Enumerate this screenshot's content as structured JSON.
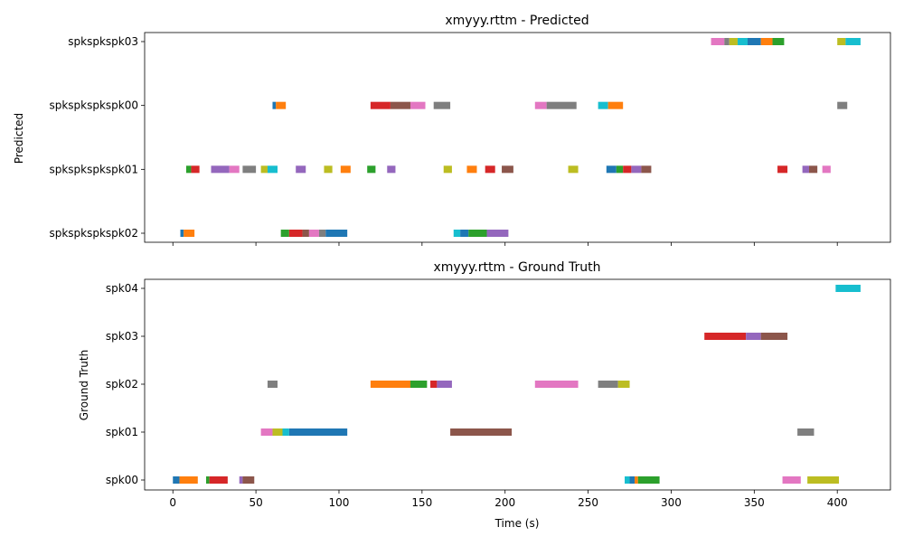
{
  "chart_data": [
    {
      "type": "timeline",
      "title": "xmyyy.rttm - Predicted",
      "ylabel": "Predicted",
      "xlabel": "",
      "xlim": [
        -17,
        432
      ],
      "xticks": [
        0,
        50,
        100,
        150,
        200,
        250,
        300,
        350,
        400
      ],
      "show_xtick_labels": false,
      "categories": [
        "spkspkspkspk02",
        "spkspkspkspk01",
        "spkspkspkspk00",
        "spkspkspk03"
      ],
      "segments": [
        {
          "row": 0,
          "start": 4.5,
          "end": 6.5,
          "color": "#1f77b4"
        },
        {
          "row": 0,
          "start": 6.5,
          "end": 13,
          "color": "#ff7f0e"
        },
        {
          "row": 0,
          "start": 65,
          "end": 70,
          "color": "#2ca02c"
        },
        {
          "row": 0,
          "start": 70,
          "end": 78,
          "color": "#d62728"
        },
        {
          "row": 0,
          "start": 78,
          "end": 82,
          "color": "#8c564b"
        },
        {
          "row": 0,
          "start": 82,
          "end": 88,
          "color": "#e377c2"
        },
        {
          "row": 0,
          "start": 88,
          "end": 92,
          "color": "#7f7f7f"
        },
        {
          "row": 0,
          "start": 92,
          "end": 105,
          "color": "#1f77b4"
        },
        {
          "row": 0,
          "start": 169,
          "end": 173,
          "color": "#17becf"
        },
        {
          "row": 0,
          "start": 173,
          "end": 178,
          "color": "#1f77b4"
        },
        {
          "row": 0,
          "start": 178,
          "end": 189,
          "color": "#2ca02c"
        },
        {
          "row": 0,
          "start": 189,
          "end": 202,
          "color": "#9467bd"
        },
        {
          "row": 1,
          "start": 8,
          "end": 11,
          "color": "#2ca02c"
        },
        {
          "row": 1,
          "start": 11,
          "end": 16,
          "color": "#d62728"
        },
        {
          "row": 1,
          "start": 23,
          "end": 34,
          "color": "#9467bd"
        },
        {
          "row": 1,
          "start": 34,
          "end": 40,
          "color": "#e377c2"
        },
        {
          "row": 1,
          "start": 42,
          "end": 50,
          "color": "#7f7f7f"
        },
        {
          "row": 1,
          "start": 53,
          "end": 57,
          "color": "#bcbd22"
        },
        {
          "row": 1,
          "start": 57,
          "end": 63,
          "color": "#17becf"
        },
        {
          "row": 1,
          "start": 74,
          "end": 80,
          "color": "#9467bd"
        },
        {
          "row": 1,
          "start": 91,
          "end": 96,
          "color": "#bcbd22"
        },
        {
          "row": 1,
          "start": 101,
          "end": 107,
          "color": "#ff7f0e"
        },
        {
          "row": 1,
          "start": 117,
          "end": 122,
          "color": "#2ca02c"
        },
        {
          "row": 1,
          "start": 129,
          "end": 134,
          "color": "#9467bd"
        },
        {
          "row": 1,
          "start": 163,
          "end": 168,
          "color": "#bcbd22"
        },
        {
          "row": 1,
          "start": 177,
          "end": 183,
          "color": "#ff7f0e"
        },
        {
          "row": 1,
          "start": 188,
          "end": 194,
          "color": "#d62728"
        },
        {
          "row": 1,
          "start": 198,
          "end": 205,
          "color": "#8c564b"
        },
        {
          "row": 1,
          "start": 238,
          "end": 244,
          "color": "#bcbd22"
        },
        {
          "row": 1,
          "start": 261,
          "end": 267,
          "color": "#1f77b4"
        },
        {
          "row": 1,
          "start": 267,
          "end": 271,
          "color": "#2ca02c"
        },
        {
          "row": 1,
          "start": 271,
          "end": 276,
          "color": "#d62728"
        },
        {
          "row": 1,
          "start": 276,
          "end": 282,
          "color": "#9467bd"
        },
        {
          "row": 1,
          "start": 282,
          "end": 288,
          "color": "#8c564b"
        },
        {
          "row": 1,
          "start": 364,
          "end": 370,
          "color": "#d62728"
        },
        {
          "row": 1,
          "start": 379,
          "end": 383,
          "color": "#9467bd"
        },
        {
          "row": 1,
          "start": 383,
          "end": 388,
          "color": "#8c564b"
        },
        {
          "row": 1,
          "start": 391,
          "end": 396,
          "color": "#e377c2"
        },
        {
          "row": 2,
          "start": 60,
          "end": 62,
          "color": "#1f77b4"
        },
        {
          "row": 2,
          "start": 62,
          "end": 68,
          "color": "#ff7f0e"
        },
        {
          "row": 2,
          "start": 119,
          "end": 131,
          "color": "#d62728"
        },
        {
          "row": 2,
          "start": 131,
          "end": 143,
          "color": "#8c564b"
        },
        {
          "row": 2,
          "start": 143,
          "end": 152,
          "color": "#e377c2"
        },
        {
          "row": 2,
          "start": 157,
          "end": 167,
          "color": "#7f7f7f"
        },
        {
          "row": 2,
          "start": 218,
          "end": 225,
          "color": "#e377c2"
        },
        {
          "row": 2,
          "start": 225,
          "end": 243,
          "color": "#7f7f7f"
        },
        {
          "row": 2,
          "start": 256,
          "end": 262,
          "color": "#17becf"
        },
        {
          "row": 2,
          "start": 262,
          "end": 271,
          "color": "#ff7f0e"
        },
        {
          "row": 2,
          "start": 400,
          "end": 406,
          "color": "#7f7f7f"
        },
        {
          "row": 3,
          "start": 324,
          "end": 332,
          "color": "#e377c2"
        },
        {
          "row": 3,
          "start": 332,
          "end": 335,
          "color": "#7f7f7f"
        },
        {
          "row": 3,
          "start": 335,
          "end": 340,
          "color": "#bcbd22"
        },
        {
          "row": 3,
          "start": 340,
          "end": 346,
          "color": "#17becf"
        },
        {
          "row": 3,
          "start": 346,
          "end": 354,
          "color": "#1f77b4"
        },
        {
          "row": 3,
          "start": 354,
          "end": 361,
          "color": "#ff7f0e"
        },
        {
          "row": 3,
          "start": 361,
          "end": 368,
          "color": "#2ca02c"
        },
        {
          "row": 3,
          "start": 400,
          "end": 405,
          "color": "#bcbd22"
        },
        {
          "row": 3,
          "start": 405,
          "end": 414,
          "color": "#17becf"
        }
      ]
    },
    {
      "type": "timeline",
      "title": "xmyyy.rttm - Ground Truth",
      "ylabel": "Ground Truth",
      "xlabel": "Time (s)",
      "xlim": [
        -17,
        432
      ],
      "xticks": [
        0,
        50,
        100,
        150,
        200,
        250,
        300,
        350,
        400
      ],
      "show_xtick_labels": true,
      "categories": [
        "spk00",
        "spk01",
        "spk02",
        "spk03",
        "spk04"
      ],
      "segments": [
        {
          "row": 0,
          "start": 0,
          "end": 4,
          "color": "#1f77b4"
        },
        {
          "row": 0,
          "start": 4,
          "end": 15,
          "color": "#ff7f0e"
        },
        {
          "row": 0,
          "start": 20,
          "end": 22,
          "color": "#2ca02c"
        },
        {
          "row": 0,
          "start": 22,
          "end": 33,
          "color": "#d62728"
        },
        {
          "row": 0,
          "start": 40,
          "end": 42,
          "color": "#9467bd"
        },
        {
          "row": 0,
          "start": 42,
          "end": 49,
          "color": "#8c564b"
        },
        {
          "row": 0,
          "start": 272,
          "end": 275,
          "color": "#17becf"
        },
        {
          "row": 0,
          "start": 275,
          "end": 278,
          "color": "#1f77b4"
        },
        {
          "row": 0,
          "start": 278,
          "end": 280,
          "color": "#ff7f0e"
        },
        {
          "row": 0,
          "start": 280,
          "end": 293,
          "color": "#2ca02c"
        },
        {
          "row": 0,
          "start": 367,
          "end": 378,
          "color": "#e377c2"
        },
        {
          "row": 0,
          "start": 382,
          "end": 401,
          "color": "#bcbd22"
        },
        {
          "row": 1,
          "start": 53,
          "end": 60,
          "color": "#e377c2"
        },
        {
          "row": 1,
          "start": 60,
          "end": 66,
          "color": "#bcbd22"
        },
        {
          "row": 1,
          "start": 66,
          "end": 70,
          "color": "#17becf"
        },
        {
          "row": 1,
          "start": 70,
          "end": 105,
          "color": "#1f77b4"
        },
        {
          "row": 1,
          "start": 167,
          "end": 204,
          "color": "#8c564b"
        },
        {
          "row": 1,
          "start": 376,
          "end": 386,
          "color": "#7f7f7f"
        },
        {
          "row": 2,
          "start": 57,
          "end": 63,
          "color": "#7f7f7f"
        },
        {
          "row": 2,
          "start": 119,
          "end": 143,
          "color": "#ff7f0e"
        },
        {
          "row": 2,
          "start": 143,
          "end": 153,
          "color": "#2ca02c"
        },
        {
          "row": 2,
          "start": 155,
          "end": 159,
          "color": "#d62728"
        },
        {
          "row": 2,
          "start": 159,
          "end": 168,
          "color": "#9467bd"
        },
        {
          "row": 2,
          "start": 218,
          "end": 244,
          "color": "#e377c2"
        },
        {
          "row": 2,
          "start": 256,
          "end": 268,
          "color": "#7f7f7f"
        },
        {
          "row": 2,
          "start": 268,
          "end": 275,
          "color": "#bcbd22"
        },
        {
          "row": 3,
          "start": 320,
          "end": 345,
          "color": "#d62728"
        },
        {
          "row": 3,
          "start": 345,
          "end": 354,
          "color": "#9467bd"
        },
        {
          "row": 3,
          "start": 354,
          "end": 370,
          "color": "#8c564b"
        },
        {
          "row": 4,
          "start": 399,
          "end": 414,
          "color": "#17becf"
        }
      ]
    }
  ]
}
